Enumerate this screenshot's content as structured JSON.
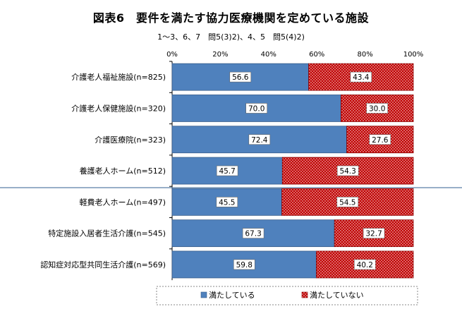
{
  "chart_data": {
    "type": "bar",
    "stacked": true,
    "orientation": "horizontal",
    "percent_stacked": true,
    "title": "図表6　要件を満たす協力医療機関を定めている施設",
    "subtitle": "1～3、6、7　問5(3)2)、4、5　問5(4)2)",
    "xlim": [
      0,
      100
    ],
    "x_ticks": [
      "0%",
      "20%",
      "40%",
      "60%",
      "80%",
      "100%"
    ],
    "x_tick_values": [
      0,
      20,
      40,
      60,
      80,
      100
    ],
    "grid": false,
    "legend_position": "bottom",
    "categories": [
      "介護老人福祉施設(n=825)",
      "介護老人保健施設(n=320)",
      "介護医療院(n=323)",
      "養護老人ホーム(n=512)",
      "軽費老人ホーム(n=497)",
      "特定施設入居者生活介護(n=545)",
      "認知症対応型共同生活介護(n=569)"
    ],
    "series": [
      {
        "name": "満たしている",
        "color": "#4f81bd",
        "pattern": "solid",
        "values": [
          56.6,
          70.0,
          72.4,
          45.7,
          45.5,
          67.3,
          59.8
        ]
      },
      {
        "name": "満たしていない",
        "color": "#c00000",
        "pattern": "dotted",
        "values": [
          43.4,
          30.0,
          27.6,
          54.3,
          54.5,
          32.7,
          40.2
        ]
      }
    ],
    "value_labels": [
      [
        "56.6",
        "43.4"
      ],
      [
        "70.0",
        "30.0"
      ],
      [
        "72.4",
        "27.6"
      ],
      [
        "45.7",
        "54.3"
      ],
      [
        "45.5",
        "54.5"
      ],
      [
        "67.3",
        "32.7"
      ],
      [
        "59.8",
        "40.2"
      ]
    ],
    "group_separator_after_index": 3
  }
}
